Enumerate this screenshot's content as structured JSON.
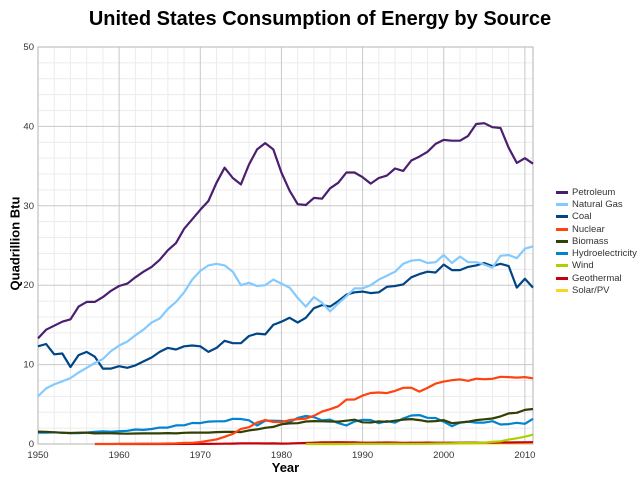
{
  "chart_data": {
    "type": "line",
    "title": "United States Consumption of Energy by Source",
    "xlabel": "Year",
    "ylabel": "Quadrillion Btu",
    "xlim": [
      1950,
      2011
    ],
    "ylim": [
      0,
      50
    ],
    "x_ticks": [
      1950,
      1960,
      1970,
      1980,
      1990,
      2000,
      2010
    ],
    "y_ticks": [
      0,
      10,
      20,
      30,
      40,
      50
    ],
    "grid": true,
    "legend_position": "right",
    "x_start": 1950,
    "series": [
      {
        "name": "Petroleum",
        "color": "#4b1f6f",
        "values": [
          13.3,
          14.4,
          14.9,
          15.4,
          15.7,
          17.3,
          17.9,
          17.9,
          18.5,
          19.3,
          19.9,
          20.2,
          21.0,
          21.7,
          22.3,
          23.2,
          24.4,
          25.3,
          27.1,
          28.3,
          29.5,
          30.6,
          32.9,
          34.8,
          33.5,
          32.7,
          35.2,
          37.1,
          37.9,
          37.1,
          34.2,
          31.9,
          30.2,
          30.1,
          31.0,
          30.9,
          32.2,
          32.9,
          34.2,
          34.2,
          33.6,
          32.8,
          33.5,
          33.8,
          34.7,
          34.4,
          35.7,
          36.2,
          36.8,
          37.8,
          38.3,
          38.2,
          38.2,
          38.8,
          40.3,
          40.4,
          39.9,
          39.8,
          37.3,
          35.4,
          36.0,
          35.3
        ]
      },
      {
        "name": "Natural Gas",
        "color": "#83caff",
        "values": [
          6.0,
          7.0,
          7.5,
          7.9,
          8.3,
          9.0,
          9.6,
          10.2,
          10.7,
          11.7,
          12.4,
          12.9,
          13.7,
          14.4,
          15.3,
          15.8,
          17.0,
          17.9,
          19.1,
          20.7,
          21.8,
          22.5,
          22.7,
          22.5,
          21.7,
          20.0,
          20.3,
          19.9,
          20.0,
          20.7,
          20.2,
          19.7,
          18.4,
          17.3,
          18.5,
          17.8,
          16.7,
          17.7,
          18.6,
          19.6,
          19.6,
          20.0,
          20.7,
          21.2,
          21.7,
          22.7,
          23.1,
          23.2,
          22.8,
          22.9,
          23.8,
          22.8,
          23.6,
          22.9,
          22.9,
          22.6,
          22.2,
          23.7,
          23.8,
          23.4,
          24.6,
          24.9
        ]
      },
      {
        "name": "Coal",
        "color": "#004586",
        "values": [
          12.3,
          12.6,
          11.3,
          11.4,
          9.7,
          11.2,
          11.6,
          11.0,
          9.5,
          9.5,
          9.8,
          9.6,
          9.9,
          10.4,
          10.9,
          11.6,
          12.1,
          11.9,
          12.3,
          12.4,
          12.3,
          11.6,
          12.1,
          13.0,
          12.7,
          12.7,
          13.6,
          13.9,
          13.8,
          15.0,
          15.4,
          15.9,
          15.3,
          15.9,
          17.1,
          17.5,
          17.3,
          18.0,
          18.8,
          19.1,
          19.2,
          19.0,
          19.1,
          19.8,
          19.9,
          20.1,
          21.0,
          21.4,
          21.7,
          21.6,
          22.6,
          21.9,
          21.9,
          22.3,
          22.5,
          22.8,
          22.4,
          22.7,
          22.4,
          19.7,
          20.8,
          19.7
        ]
      },
      {
        "name": "Nuclear",
        "color": "#ff420e",
        "values": [
          null,
          null,
          null,
          null,
          null,
          null,
          null,
          0.0,
          0.0,
          0.0,
          0.01,
          0.02,
          0.03,
          0.04,
          0.04,
          0.04,
          0.06,
          0.09,
          0.14,
          0.15,
          0.24,
          0.41,
          0.58,
          0.91,
          1.27,
          1.9,
          2.11,
          2.7,
          3.02,
          2.78,
          2.74,
          3.01,
          3.13,
          3.2,
          3.55,
          4.08,
          4.38,
          4.75,
          5.59,
          5.6,
          6.1,
          6.42,
          6.48,
          6.41,
          6.69,
          7.08,
          7.09,
          6.6,
          7.07,
          7.61,
          7.86,
          8.03,
          8.14,
          7.96,
          8.22,
          8.16,
          8.21,
          8.46,
          8.43,
          8.36,
          8.43,
          8.27
        ]
      },
      {
        "name": "Biomass",
        "color": "#314004",
        "values": [
          1.56,
          1.54,
          1.47,
          1.42,
          1.39,
          1.42,
          1.43,
          1.34,
          1.35,
          1.35,
          1.32,
          1.3,
          1.32,
          1.34,
          1.34,
          1.33,
          1.37,
          1.34,
          1.41,
          1.44,
          1.43,
          1.43,
          1.5,
          1.53,
          1.54,
          1.5,
          1.71,
          1.84,
          2.04,
          2.15,
          2.48,
          2.59,
          2.62,
          2.83,
          2.88,
          2.86,
          2.84,
          2.82,
          2.94,
          3.06,
          2.73,
          2.71,
          2.85,
          2.8,
          2.94,
          3.07,
          3.13,
          3.01,
          2.83,
          2.89,
          3.01,
          2.62,
          2.71,
          2.81,
          3.01,
          3.11,
          3.21,
          3.47,
          3.85,
          3.93,
          4.3,
          4.41
        ]
      },
      {
        "name": "Hydroelectricity",
        "color": "#0084d1",
        "values": [
          1.42,
          1.42,
          1.47,
          1.41,
          1.36,
          1.36,
          1.43,
          1.52,
          1.59,
          1.55,
          1.61,
          1.66,
          1.82,
          1.77,
          1.89,
          2.06,
          2.07,
          2.34,
          2.35,
          2.65,
          2.63,
          2.82,
          2.86,
          2.86,
          3.18,
          3.15,
          2.98,
          2.33,
          2.94,
          2.93,
          2.9,
          2.76,
          3.27,
          3.53,
          3.39,
          2.97,
          3.07,
          2.63,
          2.33,
          2.84,
          3.05,
          3.02,
          2.62,
          2.89,
          2.68,
          3.21,
          3.59,
          3.64,
          3.3,
          3.27,
          2.81,
          2.24,
          2.69,
          2.82,
          2.69,
          2.7,
          2.87,
          2.45,
          2.51,
          2.67,
          2.54,
          3.17
        ]
      },
      {
        "name": "Wind",
        "color": "#aecf00",
        "values": [
          null,
          null,
          null,
          null,
          null,
          null,
          null,
          null,
          null,
          null,
          null,
          null,
          null,
          null,
          null,
          null,
          null,
          null,
          null,
          null,
          null,
          null,
          null,
          null,
          null,
          null,
          null,
          null,
          null,
          null,
          null,
          null,
          null,
          0.0,
          0.0,
          0.0,
          0.0,
          0.0,
          0.0,
          0.02,
          0.03,
          0.03,
          0.03,
          0.03,
          0.04,
          0.03,
          0.03,
          0.03,
          0.03,
          0.05,
          0.06,
          0.07,
          0.11,
          0.12,
          0.14,
          0.18,
          0.26,
          0.34,
          0.55,
          0.72,
          0.92,
          1.17
        ]
      },
      {
        "name": "Geothermal",
        "color": "#c5000b",
        "values": [
          null,
          null,
          null,
          null,
          null,
          null,
          null,
          null,
          null,
          null,
          0.0,
          0.0,
          0.0,
          0.0,
          0.0,
          0.0,
          0.0,
          0.01,
          0.01,
          0.01,
          0.01,
          0.01,
          0.03,
          0.04,
          0.05,
          0.07,
          0.08,
          0.08,
          0.06,
          0.08,
          0.05,
          0.06,
          0.1,
          0.13,
          0.16,
          0.2,
          0.22,
          0.23,
          0.22,
          0.21,
          0.17,
          0.17,
          0.18,
          0.19,
          0.18,
          0.15,
          0.17,
          0.17,
          0.18,
          0.17,
          0.16,
          0.16,
          0.17,
          0.18,
          0.18,
          0.18,
          0.18,
          0.19,
          0.19,
          0.2,
          0.21,
          0.23
        ]
      },
      {
        "name": "Solar/PV",
        "color": "#ffd320",
        "values": [
          null,
          null,
          null,
          null,
          null,
          null,
          null,
          null,
          null,
          null,
          null,
          null,
          null,
          null,
          null,
          null,
          null,
          null,
          null,
          null,
          null,
          null,
          null,
          null,
          null,
          null,
          null,
          null,
          null,
          null,
          null,
          null,
          null,
          null,
          0.0,
          0.0,
          0.0,
          0.0,
          0.0,
          0.06,
          0.06,
          0.06,
          0.06,
          0.07,
          0.07,
          0.07,
          0.07,
          0.07,
          0.07,
          0.07,
          0.07,
          0.06,
          0.06,
          0.06,
          0.06,
          0.07,
          0.07,
          0.08,
          0.09,
          0.1,
          0.13,
          0.17
        ]
      }
    ]
  }
}
